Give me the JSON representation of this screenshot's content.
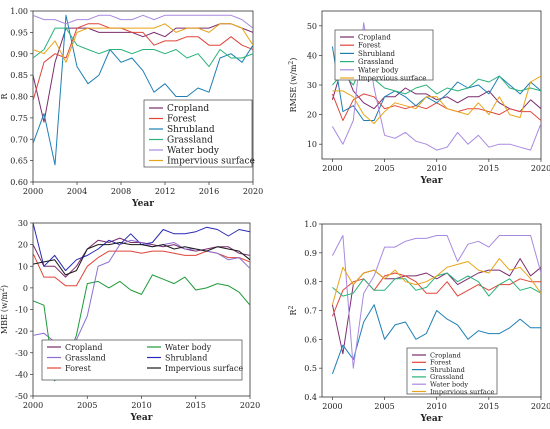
{
  "colors": {
    "Cropland": "#7b2d6e",
    "Forest": "#e0453a",
    "Shrubland": "#1f7fb5",
    "Grassland": "#29b27a",
    "Water body": "#a889e0",
    "Impervious surface": "#e8a418",
    "Shrubland_mbe": "#2a2ab8",
    "Grassland_mbe": "#8a6fd0",
    "Water body_mbe": "#1f9a3a",
    "Impervious surface_mbe": "#1a1a1a"
  },
  "chart_data": [
    {
      "type": "line",
      "xlabel": "Year",
      "ylabel": "R",
      "xlim": [
        2000,
        2020
      ],
      "ylim": [
        0.6,
        1.0
      ],
      "xticks": [
        "2000",
        "2004",
        "2008",
        "2012",
        "2016",
        "2020"
      ],
      "yticks": [
        "0.60",
        "0.65",
        "0.70",
        "0.75",
        "0.80",
        "0.85",
        "0.90",
        "0.95",
        "1.00"
      ],
      "legend_position": "lower-right",
      "x": [
        2000,
        2001,
        2002,
        2003,
        2004,
        2005,
        2006,
        2007,
        2008,
        2009,
        2010,
        2011,
        2012,
        2013,
        2014,
        2015,
        2016,
        2017,
        2018,
        2019,
        2020
      ],
      "series": [
        {
          "name": "Cropland",
          "values": [
            0.85,
            0.74,
            0.88,
            0.96,
            0.96,
            0.96,
            0.95,
            0.95,
            0.95,
            0.95,
            0.94,
            0.95,
            0.94,
            0.96,
            0.96,
            0.96,
            0.96,
            0.97,
            0.97,
            0.96,
            0.95
          ]
        },
        {
          "name": "Forest",
          "values": [
            0.79,
            0.88,
            0.9,
            0.89,
            0.96,
            0.97,
            0.97,
            0.96,
            0.96,
            0.95,
            0.95,
            0.92,
            0.93,
            0.93,
            0.94,
            0.94,
            0.92,
            0.92,
            0.94,
            0.92,
            0.91
          ]
        },
        {
          "name": "Shrubland",
          "values": [
            0.69,
            0.76,
            0.64,
            0.99,
            0.87,
            0.83,
            0.85,
            0.91,
            0.88,
            0.89,
            0.86,
            0.81,
            0.83,
            0.8,
            0.8,
            0.82,
            0.81,
            0.89,
            0.9,
            0.88,
            0.92
          ]
        },
        {
          "name": "Grassland",
          "values": [
            0.89,
            0.91,
            0.96,
            0.96,
            0.92,
            0.91,
            0.9,
            0.91,
            0.91,
            0.9,
            0.91,
            0.91,
            0.9,
            0.91,
            0.89,
            0.9,
            0.87,
            0.91,
            0.89,
            0.89,
            0.9
          ]
        },
        {
          "name": "Water body",
          "values": [
            0.99,
            0.98,
            0.98,
            0.97,
            0.98,
            0.98,
            0.99,
            0.99,
            0.98,
            0.98,
            0.99,
            0.98,
            0.99,
            0.99,
            0.99,
            0.99,
            0.99,
            0.99,
            0.99,
            0.98,
            0.96
          ]
        },
        {
          "name": "Impervious surface",
          "values": [
            0.91,
            0.9,
            0.93,
            0.88,
            0.95,
            0.96,
            0.96,
            0.96,
            0.96,
            0.96,
            0.96,
            0.96,
            0.97,
            0.95,
            0.96,
            0.96,
            0.95,
            0.97,
            0.97,
            0.96,
            0.92
          ]
        }
      ]
    },
    {
      "type": "line",
      "xlabel": "Year",
      "ylabel": "RMSE (w/m²)",
      "ylabel_main": "RMSE",
      "ylabel_unit": "(w/m",
      "ylabel_sup": "2",
      "ylabel_close": ")",
      "xlim": [
        1999,
        2020
      ],
      "ylim": [
        5,
        55
      ],
      "xticks": [
        "2000",
        "2005",
        "2010",
        "2015",
        "2020"
      ],
      "yticks": [
        "10",
        "20",
        "30",
        "40",
        "50"
      ],
      "legend_position": "top-center",
      "x": [
        2000,
        2001,
        2002,
        2003,
        2004,
        2005,
        2006,
        2007,
        2008,
        2009,
        2010,
        2011,
        2012,
        2013,
        2014,
        2015,
        2016,
        2017,
        2018,
        2019,
        2020
      ],
      "series": [
        {
          "name": "Cropland",
          "values": [
            25,
            37,
            28,
            24,
            22,
            26,
            26,
            29,
            27,
            27,
            25,
            26,
            24,
            26,
            26,
            28,
            24,
            22,
            21,
            25,
            22
          ]
        },
        {
          "name": "Forest",
          "values": [
            27,
            18,
            25,
            27,
            26,
            22,
            23,
            22,
            23,
            22,
            24,
            22,
            21,
            22,
            22,
            21,
            20,
            22,
            21,
            21,
            18
          ]
        },
        {
          "name": "Shrubland",
          "values": [
            43,
            21,
            23,
            18,
            18,
            26,
            28,
            26,
            23,
            26,
            24,
            27,
            31,
            29,
            30,
            27,
            33,
            30,
            27,
            31,
            28
          ]
        },
        {
          "name": "Grassland",
          "values": [
            30,
            34,
            30,
            38,
            32,
            29,
            28,
            27,
            29,
            30,
            27,
            29,
            28,
            29,
            32,
            31,
            33,
            29,
            28,
            29,
            28
          ]
        },
        {
          "name": "Water body",
          "values": [
            16,
            10,
            18,
            51,
            29,
            13,
            12,
            14,
            11,
            10,
            8,
            9,
            14,
            10,
            13,
            9,
            10,
            10,
            9,
            8,
            17
          ]
        },
        {
          "name": "Impervious surface",
          "values": [
            28,
            28,
            26,
            20,
            17,
            21,
            24,
            23,
            22,
            26,
            26,
            22,
            21,
            20,
            24,
            20,
            26,
            20,
            19,
            31,
            33
          ]
        }
      ]
    },
    {
      "type": "line",
      "xlabel": "Year",
      "ylabel": "MBE (w/m²)",
      "ylabel_main": "MBE",
      "ylabel_unit": "(w/m",
      "ylabel_sup": "2",
      "ylabel_close": ")",
      "xlim": [
        2000,
        2020
      ],
      "ylim": [
        -50,
        30
      ],
      "xticks": [
        "2000",
        "2005",
        "2010",
        "2015",
        "2020"
      ],
      "yticks": [
        "-50",
        "-40",
        "-30",
        "-20",
        "-10",
        "0",
        "10",
        "20",
        "30"
      ],
      "legend_position": "bottom",
      "x": [
        2000,
        2001,
        2002,
        2003,
        2004,
        2005,
        2006,
        2007,
        2008,
        2009,
        2010,
        2011,
        2012,
        2013,
        2014,
        2015,
        2016,
        2017,
        2018,
        2019,
        2020
      ],
      "series": [
        {
          "name": "Cropland",
          "values": [
            20,
            10,
            10,
            5,
            10,
            18,
            22,
            21,
            23,
            21,
            21,
            20,
            19,
            20,
            18,
            17,
            18,
            19,
            19,
            16,
            15
          ]
        },
        {
          "name": "Forest",
          "values": [
            16,
            5,
            5,
            1,
            1,
            10,
            14,
            17,
            17,
            17,
            16,
            17,
            17,
            16,
            15,
            15,
            17,
            16,
            14,
            14,
            12
          ]
        },
        {
          "name": "Shrubland",
          "values": [
            30,
            10,
            15,
            8,
            13,
            15,
            18,
            22,
            20,
            25,
            20,
            21,
            27,
            25,
            25,
            26,
            28,
            27,
            24,
            27,
            26
          ]
        },
        {
          "name": "Grassland",
          "values": [
            -22,
            -21,
            -25,
            -32,
            -24,
            -13,
            10,
            12,
            20,
            22,
            21,
            19,
            20,
            21,
            18,
            18,
            17,
            16,
            13,
            14,
            9
          ]
        },
        {
          "name": "Water body",
          "values": [
            -6,
            -8,
            -43,
            -35,
            -22,
            2,
            3,
            0,
            3,
            -1,
            -3,
            6,
            4,
            2,
            5,
            -1,
            0,
            2,
            1,
            -2,
            -8
          ]
        },
        {
          "name": "Impervious surface",
          "values": [
            11,
            12,
            13,
            6,
            8,
            18,
            20,
            20,
            21,
            20,
            20,
            19,
            20,
            18,
            19,
            18,
            17,
            19,
            18,
            17,
            13
          ]
        }
      ]
    },
    {
      "type": "line",
      "xlabel": "Year",
      "ylabel": "R²",
      "ylabel_main": "R",
      "ylabel_sup": "2",
      "xlim": [
        1999,
        2020
      ],
      "ylim": [
        0.4,
        1.0
      ],
      "xticks": [
        "2000",
        "2005",
        "2010",
        "2015",
        "2020"
      ],
      "yticks": [
        "0.4",
        "0.5",
        "0.6",
        "0.7",
        "0.8",
        "0.9",
        "1.0"
      ],
      "legend_position": "bottom-center",
      "x": [
        2000,
        2001,
        2002,
        2003,
        2004,
        2005,
        2006,
        2007,
        2008,
        2009,
        2010,
        2011,
        2012,
        2013,
        2014,
        2015,
        2016,
        2017,
        2018,
        2019,
        2020
      ],
      "series": [
        {
          "name": "Cropland",
          "values": [
            0.72,
            0.55,
            0.79,
            0.83,
            0.84,
            0.81,
            0.81,
            0.82,
            0.82,
            0.83,
            0.81,
            0.83,
            0.79,
            0.81,
            0.83,
            0.84,
            0.84,
            0.82,
            0.88,
            0.82,
            0.85
          ]
        },
        {
          "name": "Forest",
          "values": [
            0.68,
            0.77,
            0.8,
            0.81,
            0.77,
            0.82,
            0.83,
            0.82,
            0.8,
            0.76,
            0.76,
            0.8,
            0.75,
            0.77,
            0.79,
            0.77,
            0.79,
            0.79,
            0.81,
            0.8,
            0.8
          ]
        },
        {
          "name": "Shrubland",
          "values": [
            0.48,
            0.58,
            0.53,
            0.66,
            0.72,
            0.6,
            0.65,
            0.66,
            0.6,
            0.62,
            0.7,
            0.67,
            0.65,
            0.6,
            0.63,
            0.62,
            0.62,
            0.64,
            0.67,
            0.64,
            0.64
          ]
        },
        {
          "name": "Grassland",
          "values": [
            0.78,
            0.75,
            0.76,
            0.81,
            0.77,
            0.77,
            0.81,
            0.81,
            0.77,
            0.78,
            0.82,
            0.83,
            0.8,
            0.82,
            0.8,
            0.75,
            0.79,
            0.81,
            0.77,
            0.78,
            0.76
          ]
        },
        {
          "name": "Water body",
          "values": [
            0.89,
            0.96,
            0.5,
            0.76,
            0.82,
            0.92,
            0.92,
            0.94,
            0.95,
            0.95,
            0.96,
            0.96,
            0.87,
            0.93,
            0.94,
            0.92,
            0.96,
            0.96,
            0.96,
            0.96,
            0.83
          ]
        },
        {
          "name": "Impervious surface",
          "values": [
            0.72,
            0.85,
            0.79,
            0.83,
            0.84,
            0.81,
            0.84,
            0.8,
            0.79,
            0.8,
            0.82,
            0.85,
            0.86,
            0.87,
            0.84,
            0.83,
            0.88,
            0.84,
            0.85,
            0.81,
            0.76
          ]
        }
      ]
    }
  ]
}
